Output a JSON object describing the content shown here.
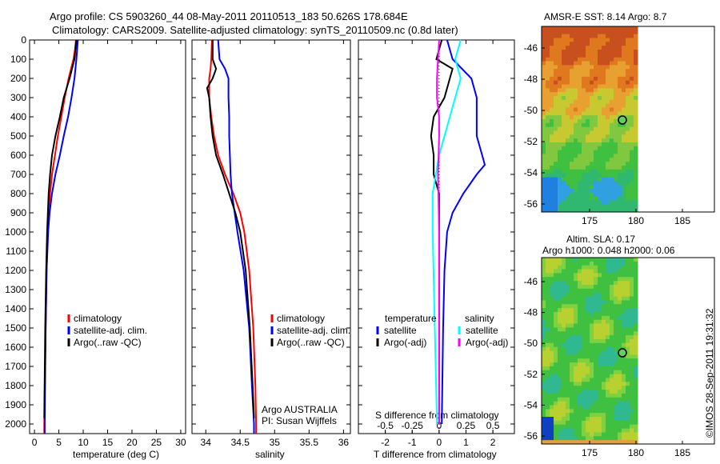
{
  "title_line1": "Argo profile: CS 5903260_44 08-May-2011 20110513_183 50.626S 178.684E",
  "title_line2": "Climatology: CARS2009. Satellite-adjusted climatology: synTS_20110509.nc (0.8d later)",
  "colors": {
    "climatology": "#ff0000",
    "satellite": "#0000ff",
    "argo": "#000000",
    "s_satellite": "#00ffff",
    "s_argo": "#ff00ff"
  },
  "chart_data": [
    {
      "type": "line",
      "name": "temperature",
      "xlabel": "temperature (deg C)",
      "ylabel": "",
      "xlim": [
        -1,
        31
      ],
      "ylim": [
        2050,
        0
      ],
      "xticks": [
        0,
        5,
        10,
        15,
        20,
        25,
        30
      ],
      "yticks": [
        0,
        100,
        200,
        300,
        400,
        500,
        600,
        700,
        800,
        900,
        1000,
        1100,
        1200,
        1300,
        1400,
        1500,
        1600,
        1700,
        1800,
        1900,
        2000
      ],
      "legend": [
        "climatology",
        "satellite-adj. clim.",
        "Argo(..raw -QC)"
      ],
      "series": [
        {
          "name": "climatology",
          "depth": [
            0,
            50,
            100,
            200,
            300,
            400,
            500,
            600,
            700,
            800,
            900,
            1000,
            1200,
            1500,
            2000,
            2050
          ],
          "values": [
            8.5,
            8.3,
            8.0,
            7.0,
            6.2,
            5.5,
            4.8,
            4.2,
            3.6,
            3.2,
            2.9,
            2.7,
            2.5,
            2.3,
            2.0,
            2.0
          ]
        },
        {
          "name": "satellite-adj. clim.",
          "depth": [
            0,
            100,
            200,
            300,
            400,
            500,
            600,
            700,
            800,
            900,
            1000,
            1200,
            1500,
            2000,
            2050
          ],
          "values": [
            8.9,
            8.6,
            8.2,
            7.6,
            6.9,
            6.0,
            5.2,
            4.3,
            3.6,
            3.1,
            2.8,
            2.5,
            2.3,
            2.1,
            2.1
          ]
        },
        {
          "name": "Argo(..raw -QC)",
          "depth": [
            0,
            100,
            200,
            300,
            400,
            500,
            600,
            700,
            800,
            1000,
            1200,
            1500,
            1970
          ],
          "values": [
            8.6,
            8.2,
            7.2,
            6.0,
            5.2,
            4.3,
            3.6,
            3.2,
            2.9,
            2.6,
            2.4,
            2.2,
            2.0
          ]
        }
      ]
    },
    {
      "type": "line",
      "name": "salinity",
      "xlabel": "salinity",
      "xlim": [
        33.8,
        36.1
      ],
      "ylim": [
        2050,
        0
      ],
      "xticks": [
        34,
        34.5,
        35,
        35.5,
        36
      ],
      "legend": [
        "climatology",
        "satellite-adj. clim.",
        "Argo(..raw -QC)"
      ],
      "annotation": [
        "Argo AUSTRALIA",
        "PI: Susan Wijffels"
      ],
      "series": [
        {
          "name": "climatology",
          "depth": [
            0,
            100,
            150,
            200,
            300,
            400,
            500,
            600,
            700,
            800,
            900,
            1000,
            1200,
            1500,
            1800,
            2000,
            2050
          ],
          "values": [
            34.09,
            34.08,
            34.07,
            34.05,
            34.05,
            34.08,
            34.12,
            34.18,
            34.28,
            34.4,
            34.5,
            34.56,
            34.63,
            34.69,
            34.72,
            34.73,
            34.73
          ]
        },
        {
          "name": "satellite-adj. clim.",
          "depth": [
            0,
            100,
            150,
            200,
            300,
            400,
            500,
            700,
            800,
            1000,
            1200,
            1500,
            1800,
            2000,
            2050
          ],
          "values": [
            34.18,
            34.2,
            34.28,
            34.33,
            34.33,
            34.34,
            34.34,
            34.36,
            34.38,
            34.46,
            34.55,
            34.63,
            34.67,
            34.7,
            34.7
          ]
        },
        {
          "name": "Argo(..raw -QC)",
          "depth": [
            0,
            100,
            150,
            200,
            250,
            300,
            400,
            500,
            600,
            700,
            800,
            900,
            1000,
            1200,
            1500,
            1800,
            1970
          ],
          "values": [
            34.1,
            34.1,
            34.15,
            34.1,
            34.02,
            34.05,
            34.07,
            34.1,
            34.15,
            34.25,
            34.34,
            34.43,
            34.5,
            34.58,
            34.64,
            34.68,
            34.7
          ]
        }
      ]
    },
    {
      "type": "line",
      "name": "difference",
      "xlabel": "T difference from climatology",
      "x2label": "S difference from climatology",
      "xlim": [
        -3,
        2.8
      ],
      "ylim": [
        2050,
        0
      ],
      "xticks": [
        -2,
        -1,
        0,
        1,
        2
      ],
      "x2ticks": [
        "-0.5",
        "-0.25",
        "0",
        "0.25",
        "0.5"
      ],
      "legend_headers": [
        "temperature",
        "salinity"
      ],
      "legend": [
        "satellite",
        "Argo(-adj)",
        "satellite",
        "Argo(-adj)"
      ],
      "series": [
        {
          "name": "T satellite",
          "depth": [
            0,
            100,
            200,
            300,
            400,
            500,
            600,
            650,
            700,
            800,
            900,
            1000,
            1200,
            1500,
            2000
          ],
          "values": [
            0.3,
            0.5,
            1.2,
            1.4,
            1.4,
            1.4,
            1.6,
            1.7,
            1.4,
            0.9,
            0.5,
            0.3,
            0.2,
            0.15,
            0.1
          ]
        },
        {
          "name": "T Argo(-adj)",
          "depth": [
            0,
            100,
            150,
            200,
            300,
            400,
            500,
            600,
            700,
            800,
            1000,
            2000
          ],
          "values": [
            0.1,
            -0.1,
            0.5,
            0.4,
            0.2,
            -0.2,
            -0.3,
            -0.2,
            -0.2,
            0,
            0,
            0
          ]
        },
        {
          "name": "S satellite",
          "depth": [
            0,
            100,
            200,
            300,
            400,
            500,
            600,
            700,
            800,
            1000,
            1500,
            2000
          ],
          "values": [
            0.2,
            0.15,
            0.2,
            0.15,
            0.1,
            0.05,
            0.0,
            -0.03,
            -0.06,
            -0.06,
            -0.04,
            -0.02
          ]
        },
        {
          "name": "S Argo(-adj)",
          "depth": [
            0,
            100,
            200,
            300,
            400,
            500,
            700,
            1000,
            2000
          ],
          "values": [
            0,
            -0.01,
            -0.02,
            -0.02,
            0,
            0,
            -0.01,
            0,
            0
          ]
        }
      ]
    },
    {
      "type": "heatmap",
      "name": "sst-map",
      "title": "AMSR-E SST: 8.14 Argo: 8.7",
      "xticks": [
        175,
        180,
        185
      ],
      "yticks": [
        -46,
        -48,
        -50,
        -52,
        -54,
        -56
      ]
    },
    {
      "type": "heatmap",
      "name": "sla-map",
      "title1": "Altim. SLA: 0.17",
      "title2": "Argo h1000: 0.048 h2000: 0.06",
      "xticks": [
        175,
        180,
        185
      ],
      "yticks": [
        -46,
        -48,
        -50,
        -52,
        -54,
        -56
      ]
    }
  ],
  "credit": "©IMOS 28-Sep-2011 19:31:32"
}
